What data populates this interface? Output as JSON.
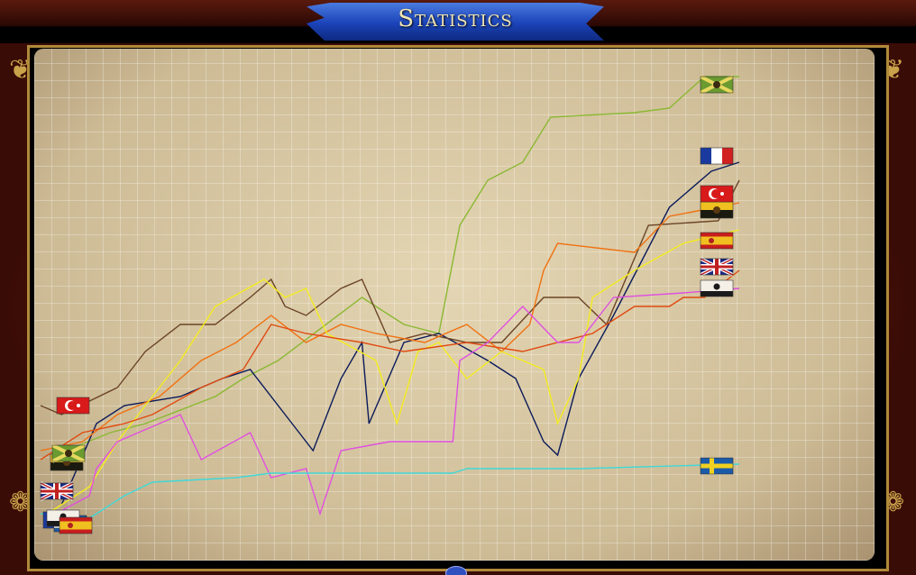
{
  "header": {
    "title": "Statistics"
  },
  "chart_data": {
    "type": "line",
    "title": "",
    "xlabel": "",
    "ylabel": "",
    "xlim": [
      0,
      100
    ],
    "ylim": [
      0,
      100
    ],
    "grid": true,
    "legend": "flags at line ends",
    "series": [
      {
        "flag": "russia-flag",
        "color": "#8ab832",
        "points": [
          [
            2,
            15
          ],
          [
            10,
            20
          ],
          [
            15,
            22
          ],
          [
            25,
            28
          ],
          [
            29,
            32
          ],
          [
            34,
            36
          ],
          [
            46,
            50
          ],
          [
            52,
            44
          ],
          [
            57,
            42
          ],
          [
            60,
            66
          ],
          [
            64,
            76
          ],
          [
            69,
            80
          ],
          [
            73,
            90
          ],
          [
            85,
            91
          ],
          [
            90,
            92
          ],
          [
            95,
            99
          ],
          [
            100,
            99
          ]
        ]
      },
      {
        "flag": "france-flag",
        "color": "#0a1a5a",
        "points": [
          [
            3,
            4
          ],
          [
            8,
            22
          ],
          [
            12,
            26
          ],
          [
            20,
            28
          ],
          [
            26,
            32
          ],
          [
            30,
            34
          ],
          [
            35,
            24
          ],
          [
            39,
            16
          ],
          [
            43,
            32
          ],
          [
            46,
            40
          ],
          [
            47,
            22
          ],
          [
            52,
            40
          ],
          [
            57,
            42
          ],
          [
            64,
            36
          ],
          [
            68,
            32
          ],
          [
            72,
            18
          ],
          [
            74,
            15
          ],
          [
            77,
            32
          ],
          [
            82,
            46
          ],
          [
            86,
            58
          ],
          [
            90,
            70
          ],
          [
            96,
            78
          ],
          [
            100,
            80
          ]
        ]
      },
      {
        "flag": "austria-flag",
        "color": "#6b4426",
        "points": [
          [
            0,
            26
          ],
          [
            3,
            24
          ],
          [
            11,
            30
          ],
          [
            15,
            38
          ],
          [
            20,
            44
          ],
          [
            25,
            44
          ],
          [
            30,
            50
          ],
          [
            33,
            54
          ],
          [
            35,
            48
          ],
          [
            38,
            46
          ],
          [
            43,
            52
          ],
          [
            46,
            54
          ],
          [
            50,
            40
          ],
          [
            55,
            42
          ],
          [
            61,
            40
          ],
          [
            66,
            40
          ],
          [
            72,
            50
          ],
          [
            77,
            50
          ],
          [
            81,
            44
          ],
          [
            87,
            66
          ],
          [
            97,
            67
          ],
          [
            100,
            76
          ]
        ]
      },
      {
        "flag": "ottoman-flag",
        "color": "#f07010",
        "points": [
          [
            0,
            16
          ],
          [
            6,
            18
          ],
          [
            11,
            24
          ],
          [
            17,
            28
          ],
          [
            23,
            36
          ],
          [
            28,
            40
          ],
          [
            33,
            46
          ],
          [
            38,
            40
          ],
          [
            43,
            44
          ],
          [
            48,
            42
          ],
          [
            55,
            40
          ],
          [
            61,
            44
          ],
          [
            66,
            38
          ],
          [
            70,
            44
          ],
          [
            72,
            56
          ],
          [
            74,
            62
          ],
          [
            85,
            60
          ],
          [
            90,
            68
          ],
          [
            100,
            71
          ]
        ]
      },
      {
        "flag": "spain-flag",
        "color": "#f4ec20",
        "points": [
          [
            1,
            2
          ],
          [
            7,
            8
          ],
          [
            11,
            18
          ],
          [
            16,
            28
          ],
          [
            20,
            36
          ],
          [
            25,
            48
          ],
          [
            32,
            54
          ],
          [
            35,
            50
          ],
          [
            38,
            52
          ],
          [
            41,
            42
          ],
          [
            48,
            36
          ],
          [
            51,
            22
          ],
          [
            54,
            38
          ],
          [
            57,
            40
          ],
          [
            61,
            32
          ],
          [
            66,
            38
          ],
          [
            72,
            34
          ],
          [
            74,
            22
          ],
          [
            77,
            32
          ],
          [
            79,
            50
          ],
          [
            85,
            56
          ],
          [
            92,
            62
          ],
          [
            100,
            65
          ]
        ]
      },
      {
        "flag": "britain-flag",
        "color": "#e04a10",
        "points": [
          [
            0,
            14
          ],
          [
            6,
            20
          ],
          [
            12,
            22
          ],
          [
            16,
            24
          ],
          [
            23,
            30
          ],
          [
            29,
            34
          ],
          [
            33,
            44
          ],
          [
            38,
            42
          ],
          [
            46,
            40
          ],
          [
            52,
            38
          ],
          [
            61,
            40
          ],
          [
            69,
            38
          ],
          [
            74,
            40
          ],
          [
            79,
            42
          ],
          [
            85,
            48
          ],
          [
            90,
            48
          ],
          [
            92,
            50
          ],
          [
            95,
            50
          ],
          [
            100,
            56
          ]
        ]
      },
      {
        "flag": "prussia-flag",
        "color": "#e050e0",
        "points": [
          [
            1,
            1
          ],
          [
            7,
            6
          ],
          [
            8,
            12
          ],
          [
            11,
            18
          ],
          [
            17,
            22
          ],
          [
            20,
            24
          ],
          [
            23,
            14
          ],
          [
            30,
            20
          ],
          [
            33,
            10
          ],
          [
            38,
            12
          ],
          [
            40,
            2
          ],
          [
            43,
            16
          ],
          [
            50,
            18
          ],
          [
            59,
            18
          ],
          [
            60,
            36
          ],
          [
            64,
            40
          ],
          [
            69,
            48
          ],
          [
            74,
            40
          ],
          [
            77,
            40
          ],
          [
            82,
            50
          ],
          [
            92,
            51
          ],
          [
            100,
            52
          ]
        ]
      },
      {
        "flag": "sweden-flag",
        "color": "#40d8d8",
        "points": [
          [
            0,
            2
          ],
          [
            7,
            1
          ],
          [
            12,
            6
          ],
          [
            16,
            9
          ],
          [
            28,
            10
          ],
          [
            33,
            11
          ],
          [
            59,
            11
          ],
          [
            61,
            12
          ],
          [
            72,
            12
          ],
          [
            77,
            12
          ],
          [
            100,
            13
          ]
        ]
      }
    ]
  }
}
